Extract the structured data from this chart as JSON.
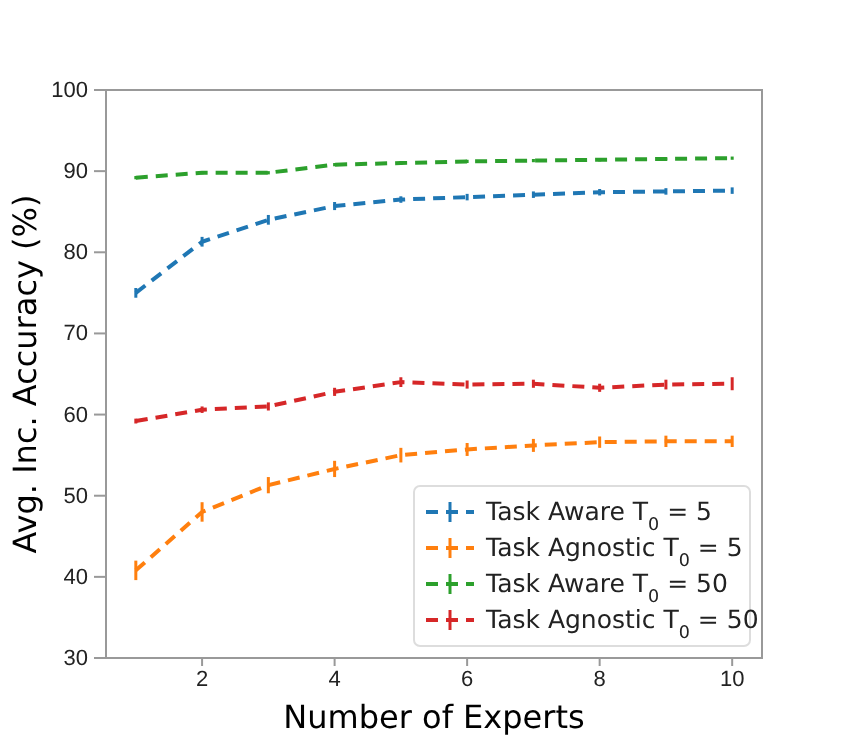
{
  "chart_data": {
    "type": "line",
    "xlabel": "Number of Experts",
    "ylabel": "Avg. Inc. Accuracy (%)",
    "x": [
      1,
      2,
      3,
      4,
      5,
      6,
      7,
      8,
      9,
      10
    ],
    "xlim": [
      0.55,
      10.45
    ],
    "ylim": [
      30,
      100
    ],
    "xticks": [
      2,
      4,
      6,
      8,
      10
    ],
    "yticks": [
      30,
      40,
      50,
      60,
      70,
      80,
      90,
      100
    ],
    "line_style": "dashed",
    "legend": "bottom right",
    "grid": false,
    "series": [
      {
        "name": "Task Aware T$_{0}$ = 5",
        "color": "#1f77b4",
        "values": [
          75,
          81.3,
          84,
          85.7,
          86.5,
          86.8,
          87.1,
          87.4,
          87.5,
          87.6
        ],
        "errors": [
          0.6,
          0.6,
          0.6,
          0.5,
          0.4,
          0.4,
          0.4,
          0.4,
          0.4,
          0.4
        ]
      },
      {
        "name": "Task Agnostic T$_{0}$ = 5",
        "color": "#ff7f0e",
        "values": [
          40.8,
          48,
          51.3,
          53.3,
          55,
          55.7,
          56.2,
          56.6,
          56.7,
          56.7
        ],
        "errors": [
          1.2,
          1.2,
          1,
          1,
          0.9,
          0.8,
          0.8,
          0.7,
          0.7,
          0.7
        ]
      },
      {
        "name": "Task Aware T$_{0}$ = 50",
        "color": "#2ca02c",
        "values": [
          89.2,
          89.8,
          89.8,
          90.8,
          91,
          91.2,
          91.3,
          91.4,
          91.5,
          91.6
        ],
        "errors": [
          0.2,
          0.2,
          0.2,
          0.2,
          0.2,
          0.2,
          0.2,
          0.2,
          0.2,
          0.2
        ]
      },
      {
        "name": "Task Agnostic T$_{0}$ = 50",
        "color": "#d62728",
        "values": [
          59.2,
          60.6,
          61,
          62.8,
          64,
          63.7,
          63.8,
          63.3,
          63.7,
          63.8
        ],
        "errors": [
          0.3,
          0.4,
          0.5,
          0.5,
          0.6,
          0.5,
          0.5,
          0.5,
          0.6,
          0.8
        ]
      }
    ]
  }
}
